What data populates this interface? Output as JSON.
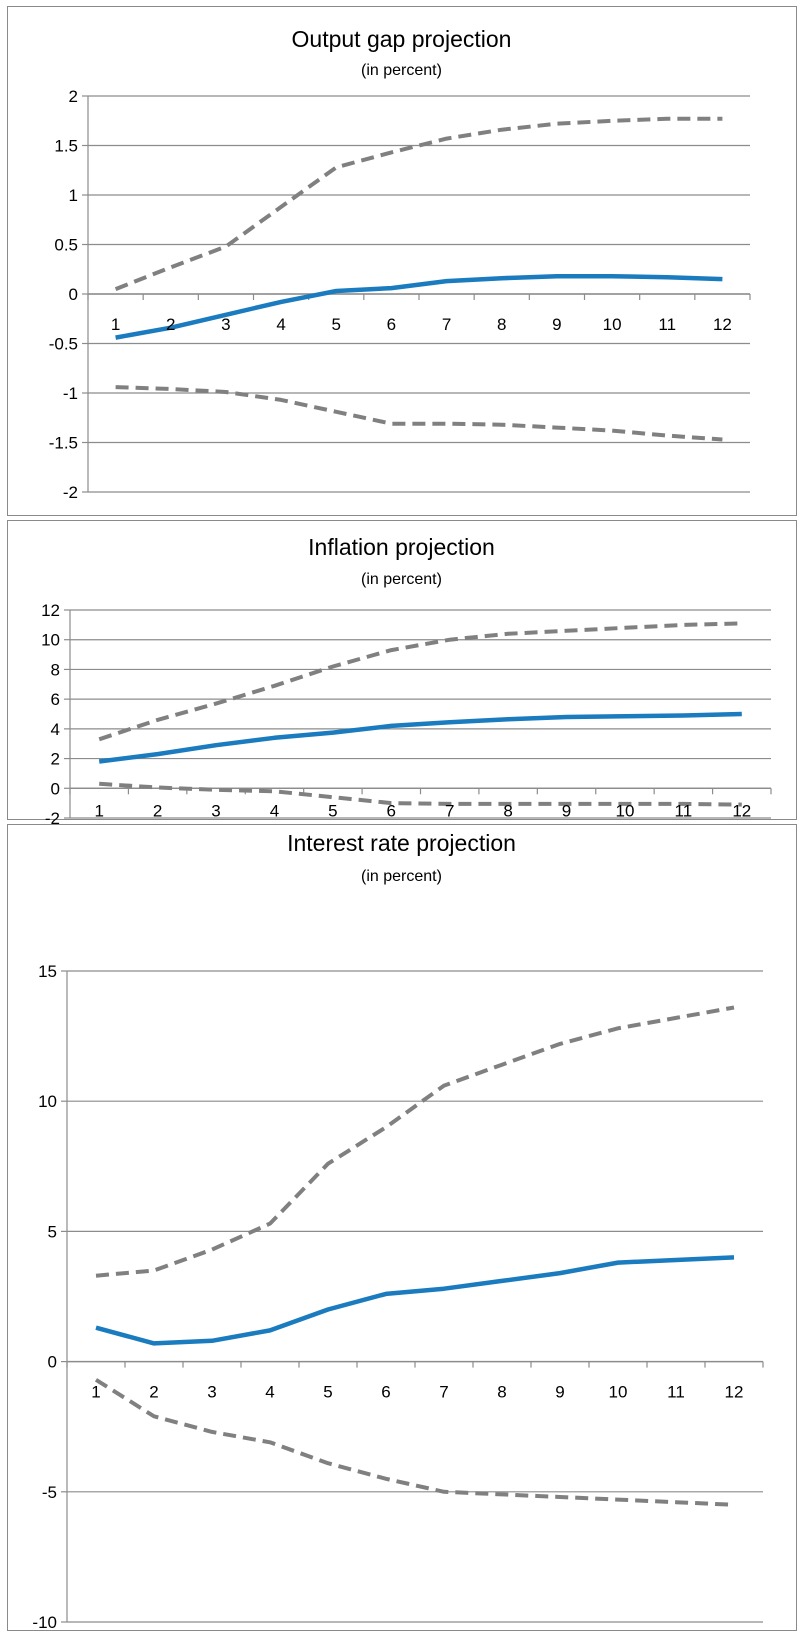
{
  "chart_data": [
    {
      "type": "line",
      "title": "Output gap projection",
      "subtitle": "(in percent)",
      "categories": [
        "1",
        "2",
        "3",
        "4",
        "5",
        "6",
        "7",
        "8",
        "9",
        "10",
        "11",
        "12"
      ],
      "y_ticks": [
        "2",
        "1.5",
        "1",
        "0.5",
        "0",
        "-0.5",
        "-1",
        "-1.5",
        "-2"
      ],
      "ylim": [
        -2,
        2
      ],
      "grid": true,
      "legend": "none",
      "series": [
        {
          "style": "dashed",
          "color": "#808080",
          "values": [
            0.05,
            0.27,
            0.48,
            0.88,
            1.28,
            1.43,
            1.57,
            1.66,
            1.72,
            1.75,
            1.77,
            1.77
          ]
        },
        {
          "style": "solid",
          "color": "#1b7bbf",
          "values": [
            -0.44,
            -0.34,
            -0.21,
            -0.08,
            0.03,
            0.06,
            0.13,
            0.16,
            0.18,
            0.18,
            0.17,
            0.15
          ]
        },
        {
          "style": "dashed",
          "color": "#808080",
          "values": [
            -0.94,
            -0.96,
            -0.99,
            -1.07,
            -1.19,
            -1.31,
            -1.31,
            -1.32,
            -1.35,
            -1.38,
            -1.43,
            -1.47
          ]
        }
      ]
    },
    {
      "type": "line",
      "title": "Inflation projection",
      "subtitle": "(in percent)",
      "categories": [
        "1",
        "2",
        "3",
        "4",
        "5",
        "6",
        "7",
        "8",
        "9",
        "10",
        "11",
        "12"
      ],
      "y_ticks": [
        "12",
        "10",
        "8",
        "6",
        "4",
        "2",
        "0",
        "-2"
      ],
      "ylim": [
        -2,
        12
      ],
      "grid": true,
      "legend": "none",
      "series": [
        {
          "style": "dashed",
          "color": "#808080",
          "values": [
            3.3,
            4.6,
            5.7,
            6.9,
            8.2,
            9.3,
            10.0,
            10.4,
            10.6,
            10.8,
            11.0,
            11.1
          ]
        },
        {
          "style": "solid",
          "color": "#1b7bbf",
          "values": [
            1.8,
            2.3,
            2.9,
            3.4,
            3.75,
            4.2,
            4.45,
            4.65,
            4.8,
            4.85,
            4.9,
            5.0
          ]
        },
        {
          "style": "dashed",
          "color": "#808080",
          "values": [
            0.3,
            0.05,
            -0.1,
            -0.2,
            -0.6,
            -1.0,
            -1.05,
            -1.05,
            -1.05,
            -1.05,
            -1.05,
            -1.1
          ]
        }
      ]
    },
    {
      "type": "line",
      "title": "Interest rate projection",
      "subtitle": "(in percent)",
      "categories": [
        "1",
        "2",
        "3",
        "4",
        "5",
        "6",
        "7",
        "8",
        "9",
        "10",
        "11",
        "12"
      ],
      "y_ticks": [
        "15",
        "10",
        "5",
        "0",
        "-5",
        "-10"
      ],
      "ylim": [
        -10,
        15
      ],
      "grid": true,
      "legend": "none",
      "series": [
        {
          "style": "dashed",
          "color": "#808080",
          "values": [
            3.3,
            3.5,
            4.3,
            5.3,
            7.6,
            9.0,
            10.6,
            11.4,
            12.2,
            12.8,
            13.2,
            13.6
          ]
        },
        {
          "style": "solid",
          "color": "#1b7bbf",
          "values": [
            1.3,
            0.7,
            0.8,
            1.2,
            2.0,
            2.6,
            2.8,
            3.1,
            3.4,
            3.8,
            3.9,
            4.0
          ]
        },
        {
          "style": "dashed",
          "color": "#808080",
          "values": [
            -0.7,
            -2.1,
            -2.7,
            -3.1,
            -3.9,
            -4.5,
            -5.0,
            -5.1,
            -5.2,
            -5.3,
            -5.4,
            -5.5
          ]
        }
      ]
    }
  ]
}
